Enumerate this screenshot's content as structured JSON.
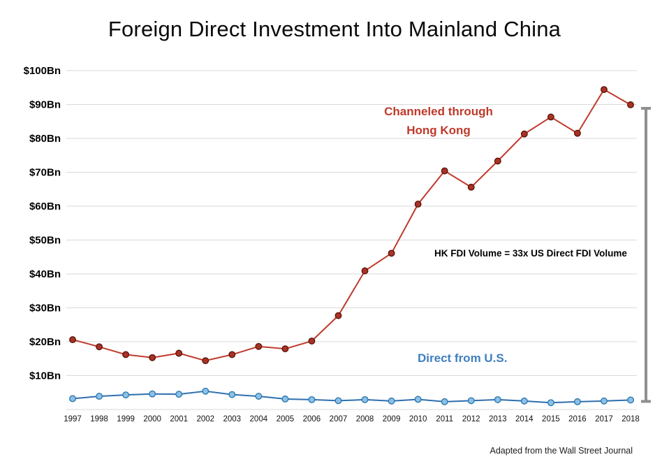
{
  "title": "Foreign Direct Investment Into Mainland China",
  "source_note": "Adapted from the Wall Street Journal",
  "annotations": {
    "hk_line1": "Channeled through",
    "hk_line2": "Hong Kong",
    "ratio_label": "HK FDI Volume = 33x US Direct FDI Volume",
    "us_label": "Direct from U.S."
  },
  "colors": {
    "grid": "#d9d9d9",
    "hk_line": "#c0392b",
    "hk_marker_fill": "#a93226",
    "hk_marker_stroke": "#591207",
    "us_line": "#2e6fae",
    "us_marker_fill": "#8bc0ea",
    "us_marker_stroke": "#2874a6",
    "bracket": "#8f8f8f",
    "hk_label": "#c0392b",
    "us_label": "#3f7fbf"
  },
  "chart_data": {
    "type": "line",
    "title": "Foreign Direct Investment Into Mainland China",
    "xlabel": "",
    "ylabel": "",
    "grid": true,
    "legend_position": "inline-annotations",
    "ylim": [
      0,
      100
    ],
    "y_ticks": [
      {
        "value": 100,
        "label": "$100Bn"
      },
      {
        "value": 90,
        "label": "$90Bn"
      },
      {
        "value": 80,
        "label": "$80Bn"
      },
      {
        "value": 70,
        "label": "$70Bn"
      },
      {
        "value": 60,
        "label": "$60Bn"
      },
      {
        "value": 50,
        "label": "$50Bn"
      },
      {
        "value": 40,
        "label": "$40Bn"
      },
      {
        "value": 30,
        "label": "$30Bn"
      },
      {
        "value": 20,
        "label": "$20Bn"
      },
      {
        "value": 10,
        "label": "$10Bn"
      }
    ],
    "x": [
      1997,
      1998,
      1999,
      2000,
      2001,
      2002,
      2003,
      2004,
      2005,
      2006,
      2007,
      2008,
      2009,
      2010,
      2011,
      2012,
      2013,
      2014,
      2015,
      2016,
      2017,
      2018
    ],
    "series": [
      {
        "name": "Channeled through Hong Kong",
        "color": "#c0392b",
        "values": [
          20.6,
          18.5,
          16.2,
          15.3,
          16.6,
          14.4,
          16.2,
          18.6,
          17.9,
          20.2,
          27.7,
          40.9,
          46.1,
          60.6,
          70.4,
          65.6,
          73.3,
          81.3,
          86.3,
          81.5,
          94.4,
          89.9
        ]
      },
      {
        "name": "Direct from U.S.",
        "color": "#2e6fae",
        "values": [
          3.2,
          3.9,
          4.3,
          4.6,
          4.5,
          5.4,
          4.4,
          3.9,
          3.1,
          2.9,
          2.6,
          2.9,
          2.5,
          3.0,
          2.3,
          2.6,
          2.9,
          2.5,
          2.0,
          2.3,
          2.5,
          2.8
        ]
      }
    ],
    "annotation": "HK FDI Volume = 33x US Direct FDI Volume"
  }
}
